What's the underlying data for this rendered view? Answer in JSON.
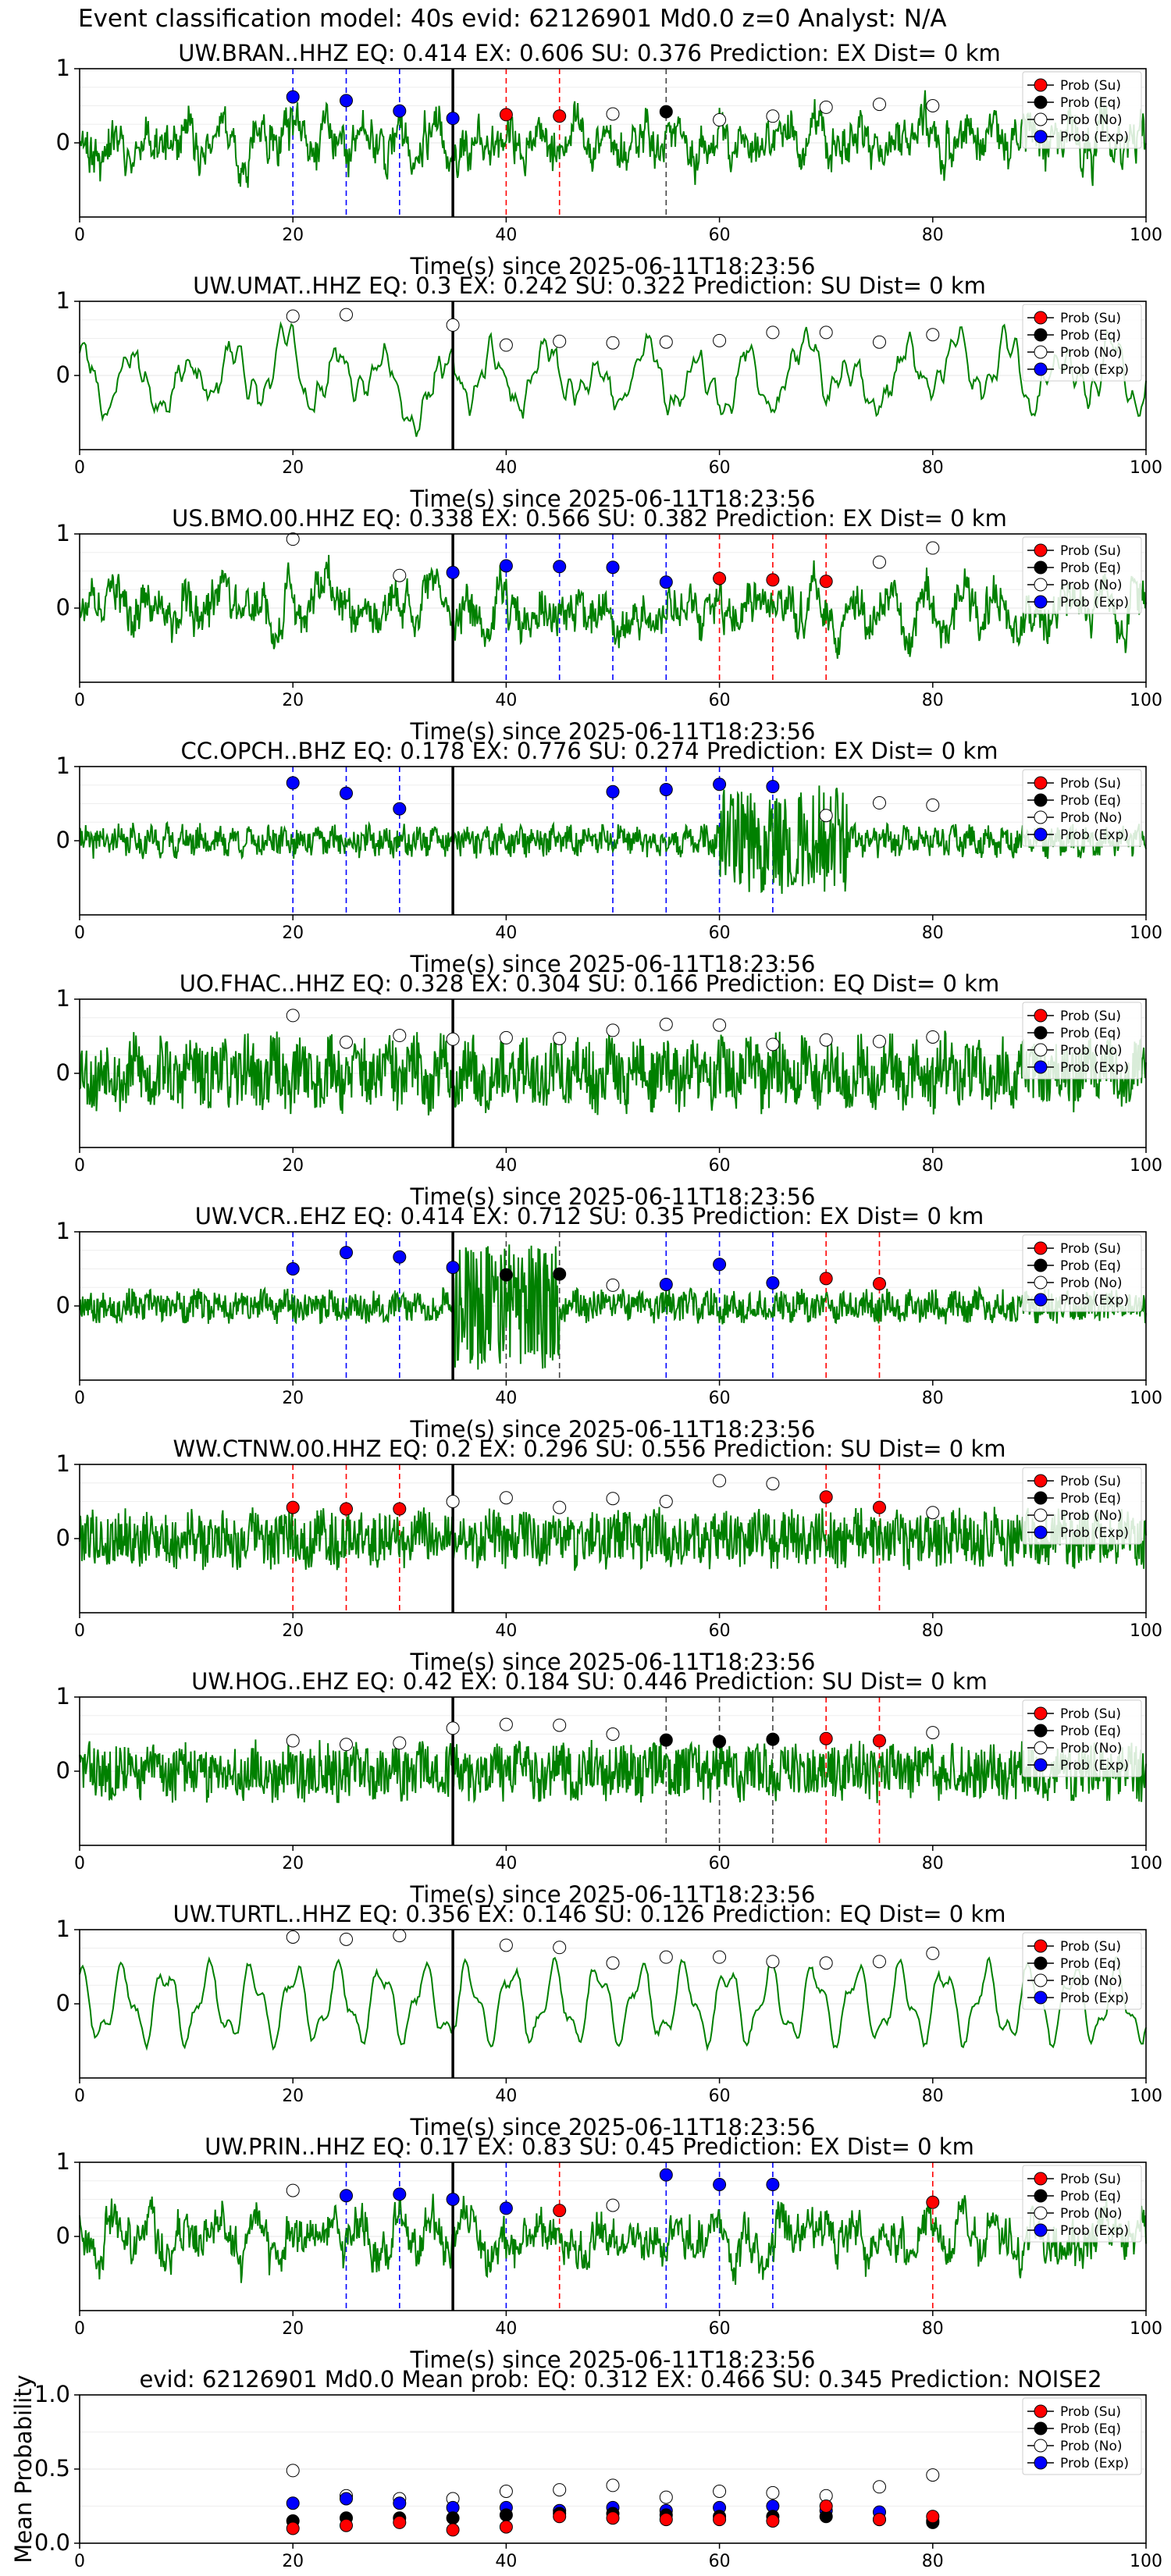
{
  "header": {
    "title": "Event classification model: 40s evid: 62126901 Md0.0 z=0 Analyst: N/A"
  },
  "legend_labels": [
    "Prob (Su)",
    "Prob (Eq)",
    "Prob (No)",
    "Prob (Exp)"
  ],
  "colors": {
    "su": "#ff0000",
    "eq": "#000000",
    "no": "#ffffff",
    "exp": "#0000ff",
    "trace": "#008000",
    "onset": "#000000"
  },
  "chart_data": [
    {
      "type": "line",
      "title": "UW.BRAN..HHZ   EQ: 0.414   EX: 0.606   SU: 0.376   Prediction: EX    Dist= 0 km",
      "xlabel": "Time(s) since 2025-06-11T18:23:56",
      "xlim": [
        0,
        100
      ],
      "ylim": [
        -1,
        1
      ],
      "xticks": [
        0,
        20,
        40,
        60,
        80,
        100
      ],
      "yticks": [
        0,
        1
      ],
      "onset": 35,
      "seed": 11,
      "style": "mixed",
      "points": [
        {
          "x": 20,
          "y": 0.62,
          "cls": "exp"
        },
        {
          "x": 25,
          "y": 0.57,
          "cls": "exp"
        },
        {
          "x": 30,
          "y": 0.43,
          "cls": "exp"
        },
        {
          "x": 35,
          "y": 0.33,
          "cls": "exp"
        },
        {
          "x": 40,
          "y": 0.38,
          "cls": "su"
        },
        {
          "x": 45,
          "y": 0.36,
          "cls": "su"
        },
        {
          "x": 50,
          "y": 0.39,
          "cls": "no"
        },
        {
          "x": 55,
          "y": 0.42,
          "cls": "eq"
        },
        {
          "x": 60,
          "y": 0.31,
          "cls": "no"
        },
        {
          "x": 65,
          "y": 0.36,
          "cls": "no"
        },
        {
          "x": 70,
          "y": 0.48,
          "cls": "no"
        },
        {
          "x": 75,
          "y": 0.52,
          "cls": "no"
        },
        {
          "x": 80,
          "y": 0.5,
          "cls": "no"
        }
      ]
    },
    {
      "type": "line",
      "title": "UW.UMAT..HHZ   EQ: 0.3  EX: 0.242  SU: 0.322   Prediction: SU    Dist= 0 km",
      "xlabel": "Time(s) since 2025-06-11T18:23:56",
      "xlim": [
        0,
        100
      ],
      "ylim": [
        -1,
        1
      ],
      "xticks": [
        0,
        20,
        40,
        60,
        80,
        100
      ],
      "yticks": [
        0,
        1
      ],
      "onset": 35,
      "seed": 23,
      "style": "smooth",
      "points": [
        {
          "x": 20,
          "y": 0.8,
          "cls": "no"
        },
        {
          "x": 25,
          "y": 0.82,
          "cls": "no"
        },
        {
          "x": 35,
          "y": 0.68,
          "cls": "no"
        },
        {
          "x": 40,
          "y": 0.41,
          "cls": "no"
        },
        {
          "x": 45,
          "y": 0.46,
          "cls": "no"
        },
        {
          "x": 50,
          "y": 0.44,
          "cls": "no"
        },
        {
          "x": 55,
          "y": 0.45,
          "cls": "no"
        },
        {
          "x": 60,
          "y": 0.47,
          "cls": "no"
        },
        {
          "x": 65,
          "y": 0.58,
          "cls": "no"
        },
        {
          "x": 70,
          "y": 0.58,
          "cls": "no"
        },
        {
          "x": 75,
          "y": 0.45,
          "cls": "no"
        },
        {
          "x": 80,
          "y": 0.55,
          "cls": "no"
        }
      ]
    },
    {
      "type": "line",
      "title": "US.BMO.00.HHZ   EQ: 0.338   EX: 0.566   SU: 0.382   Prediction: EX    Dist= 0 km",
      "xlabel": "Time(s) since 2025-06-11T18:23:56",
      "xlim": [
        0,
        100
      ],
      "ylim": [
        -1,
        1
      ],
      "xticks": [
        0,
        20,
        40,
        60,
        80,
        100
      ],
      "yticks": [
        0,
        1
      ],
      "onset": 35,
      "seed": 37,
      "style": "mixed",
      "points": [
        {
          "x": 20,
          "y": 0.93,
          "cls": "no"
        },
        {
          "x": 30,
          "y": 0.44,
          "cls": "no"
        },
        {
          "x": 35,
          "y": 0.48,
          "cls": "exp"
        },
        {
          "x": 40,
          "y": 0.57,
          "cls": "exp"
        },
        {
          "x": 45,
          "y": 0.56,
          "cls": "exp"
        },
        {
          "x": 50,
          "y": 0.55,
          "cls": "exp"
        },
        {
          "x": 55,
          "y": 0.35,
          "cls": "exp"
        },
        {
          "x": 60,
          "y": 0.4,
          "cls": "su"
        },
        {
          "x": 65,
          "y": 0.38,
          "cls": "su"
        },
        {
          "x": 70,
          "y": 0.36,
          "cls": "su"
        },
        {
          "x": 75,
          "y": 0.62,
          "cls": "no"
        },
        {
          "x": 80,
          "y": 0.81,
          "cls": "no"
        }
      ]
    },
    {
      "type": "line",
      "title": "CC.OPCH..BHZ   EQ: 0.178   EX: 0.776   SU: 0.274   Prediction: EX    Dist= 0 km",
      "xlabel": "Time(s) since 2025-06-11T18:23:56",
      "xlim": [
        0,
        100
      ],
      "ylim": [
        -1,
        1
      ],
      "xticks": [
        0,
        20,
        40,
        60,
        80,
        100
      ],
      "yticks": [
        0,
        1
      ],
      "onset": 35,
      "seed": 41,
      "style": "quiet",
      "points": [
        {
          "x": 20,
          "y": 0.78,
          "cls": "exp"
        },
        {
          "x": 25,
          "y": 0.64,
          "cls": "exp"
        },
        {
          "x": 30,
          "y": 0.43,
          "cls": "exp"
        },
        {
          "x": 50,
          "y": 0.66,
          "cls": "exp"
        },
        {
          "x": 55,
          "y": 0.69,
          "cls": "exp"
        },
        {
          "x": 60,
          "y": 0.76,
          "cls": "exp"
        },
        {
          "x": 65,
          "y": 0.73,
          "cls": "exp"
        },
        {
          "x": 70,
          "y": 0.34,
          "cls": "no"
        },
        {
          "x": 75,
          "y": 0.51,
          "cls": "no"
        },
        {
          "x": 80,
          "y": 0.48,
          "cls": "no"
        }
      ]
    },
    {
      "type": "line",
      "title": "UO.FHAC..HHZ   EQ: 0.328   EX: 0.304   SU: 0.166   Prediction: EQ    Dist= 0 km",
      "xlabel": "Time(s) since 2025-06-11T18:23:56",
      "xlim": [
        0,
        100
      ],
      "ylim": [
        -1,
        1
      ],
      "xticks": [
        0,
        20,
        40,
        60,
        80,
        100
      ],
      "yticks": [
        0,
        1
      ],
      "onset": 35,
      "seed": 53,
      "style": "busy",
      "points": [
        {
          "x": 20,
          "y": 0.78,
          "cls": "no"
        },
        {
          "x": 25,
          "y": 0.42,
          "cls": "no"
        },
        {
          "x": 30,
          "y": 0.51,
          "cls": "no"
        },
        {
          "x": 35,
          "y": 0.46,
          "cls": "no"
        },
        {
          "x": 40,
          "y": 0.48,
          "cls": "no"
        },
        {
          "x": 45,
          "y": 0.47,
          "cls": "no"
        },
        {
          "x": 50,
          "y": 0.58,
          "cls": "no"
        },
        {
          "x": 55,
          "y": 0.66,
          "cls": "no"
        },
        {
          "x": 60,
          "y": 0.65,
          "cls": "no"
        },
        {
          "x": 65,
          "y": 0.39,
          "cls": "no"
        },
        {
          "x": 70,
          "y": 0.45,
          "cls": "no"
        },
        {
          "x": 75,
          "y": 0.43,
          "cls": "no"
        },
        {
          "x": 80,
          "y": 0.49,
          "cls": "no"
        }
      ]
    },
    {
      "type": "line",
      "title": "UW.VCR..EHZ   EQ: 0.414   EX: 0.712   SU: 0.35   Prediction: EX    Dist= 0 km",
      "xlabel": "Time(s) since 2025-06-11T18:23:56",
      "xlim": [
        0,
        100
      ],
      "ylim": [
        -1,
        1
      ],
      "xticks": [
        0,
        20,
        40,
        60,
        80,
        100
      ],
      "yticks": [
        0,
        1
      ],
      "onset": 35,
      "seed": 67,
      "style": "burst",
      "points": [
        {
          "x": 20,
          "y": 0.5,
          "cls": "exp"
        },
        {
          "x": 25,
          "y": 0.72,
          "cls": "exp"
        },
        {
          "x": 30,
          "y": 0.66,
          "cls": "exp"
        },
        {
          "x": 35,
          "y": 0.52,
          "cls": "exp"
        },
        {
          "x": 40,
          "y": 0.42,
          "cls": "eq"
        },
        {
          "x": 45,
          "y": 0.43,
          "cls": "eq"
        },
        {
          "x": 50,
          "y": 0.28,
          "cls": "no"
        },
        {
          "x": 55,
          "y": 0.29,
          "cls": "exp"
        },
        {
          "x": 60,
          "y": 0.56,
          "cls": "exp"
        },
        {
          "x": 65,
          "y": 0.31,
          "cls": "exp"
        },
        {
          "x": 70,
          "y": 0.37,
          "cls": "su"
        },
        {
          "x": 75,
          "y": 0.3,
          "cls": "su"
        }
      ]
    },
    {
      "type": "line",
      "title": "WW.CTNW.00.HHZ   EQ: 0.2   EX: 0.296   SU: 0.556   Prediction: SU    Dist= 0 km",
      "xlabel": "Time(s) since 2025-06-11T18:23:56",
      "xlim": [
        0,
        100
      ],
      "ylim": [
        -1,
        1
      ],
      "xticks": [
        0,
        20,
        40,
        60,
        80,
        100
      ],
      "yticks": [
        0,
        1
      ],
      "onset": 35,
      "seed": 79,
      "style": "noisy",
      "points": [
        {
          "x": 20,
          "y": 0.42,
          "cls": "su"
        },
        {
          "x": 25,
          "y": 0.4,
          "cls": "su"
        },
        {
          "x": 30,
          "y": 0.4,
          "cls": "su"
        },
        {
          "x": 35,
          "y": 0.5,
          "cls": "no"
        },
        {
          "x": 40,
          "y": 0.55,
          "cls": "no"
        },
        {
          "x": 45,
          "y": 0.42,
          "cls": "no"
        },
        {
          "x": 50,
          "y": 0.54,
          "cls": "no"
        },
        {
          "x": 55,
          "y": 0.5,
          "cls": "no"
        },
        {
          "x": 60,
          "y": 0.78,
          "cls": "no"
        },
        {
          "x": 65,
          "y": 0.74,
          "cls": "no"
        },
        {
          "x": 70,
          "y": 0.56,
          "cls": "su"
        },
        {
          "x": 75,
          "y": 0.42,
          "cls": "su"
        },
        {
          "x": 80,
          "y": 0.35,
          "cls": "no"
        }
      ]
    },
    {
      "type": "line",
      "title": "UW.HOG..EHZ   EQ: 0.42   EX: 0.184   SU: 0.446   Prediction: SU    Dist= 0 km",
      "xlabel": "Time(s) since 2025-06-11T18:23:56",
      "xlim": [
        0,
        100
      ],
      "ylim": [
        -1,
        1
      ],
      "xticks": [
        0,
        20,
        40,
        60,
        80,
        100
      ],
      "yticks": [
        0,
        1
      ],
      "onset": 35,
      "seed": 83,
      "style": "noisy",
      "points": [
        {
          "x": 20,
          "y": 0.41,
          "cls": "no"
        },
        {
          "x": 25,
          "y": 0.36,
          "cls": "no"
        },
        {
          "x": 30,
          "y": 0.38,
          "cls": "no"
        },
        {
          "x": 35,
          "y": 0.58,
          "cls": "no"
        },
        {
          "x": 40,
          "y": 0.63,
          "cls": "no"
        },
        {
          "x": 45,
          "y": 0.62,
          "cls": "no"
        },
        {
          "x": 50,
          "y": 0.5,
          "cls": "no"
        },
        {
          "x": 55,
          "y": 0.42,
          "cls": "eq"
        },
        {
          "x": 60,
          "y": 0.4,
          "cls": "eq"
        },
        {
          "x": 65,
          "y": 0.43,
          "cls": "eq"
        },
        {
          "x": 70,
          "y": 0.44,
          "cls": "su"
        },
        {
          "x": 75,
          "y": 0.41,
          "cls": "su"
        },
        {
          "x": 80,
          "y": 0.52,
          "cls": "no"
        }
      ]
    },
    {
      "type": "line",
      "title": "UW.TURTL..HHZ   EQ: 0.356   EX: 0.146   SU: 0.126   Prediction: EQ    Dist= 0 km",
      "xlabel": "Time(s) since 2025-06-11T18:23:56",
      "xlim": [
        0,
        100
      ],
      "ylim": [
        -1,
        1
      ],
      "xticks": [
        0,
        20,
        40,
        60,
        80,
        100
      ],
      "yticks": [
        0,
        1
      ],
      "onset": 35,
      "seed": 97,
      "style": "wave",
      "points": [
        {
          "x": 20,
          "y": 0.9,
          "cls": "no"
        },
        {
          "x": 25,
          "y": 0.87,
          "cls": "no"
        },
        {
          "x": 30,
          "y": 0.92,
          "cls": "no"
        },
        {
          "x": 40,
          "y": 0.79,
          "cls": "no"
        },
        {
          "x": 45,
          "y": 0.76,
          "cls": "no"
        },
        {
          "x": 50,
          "y": 0.55,
          "cls": "no"
        },
        {
          "x": 55,
          "y": 0.63,
          "cls": "no"
        },
        {
          "x": 60,
          "y": 0.63,
          "cls": "no"
        },
        {
          "x": 65,
          "y": 0.57,
          "cls": "no"
        },
        {
          "x": 70,
          "y": 0.55,
          "cls": "no"
        },
        {
          "x": 75,
          "y": 0.57,
          "cls": "no"
        },
        {
          "x": 80,
          "y": 0.68,
          "cls": "no"
        }
      ]
    },
    {
      "type": "line",
      "title": "UW.PRIN..HHZ   EQ: 0.17   EX: 0.83   SU: 0.45   Prediction: EX    Dist= 0 km",
      "xlabel": "Time(s) since 2025-06-11T18:23:56",
      "xlim": [
        0,
        100
      ],
      "ylim": [
        -1,
        1
      ],
      "xticks": [
        0,
        20,
        40,
        60,
        80,
        100
      ],
      "yticks": [
        0,
        1
      ],
      "onset": 35,
      "seed": 101,
      "style": "mixed",
      "points": [
        {
          "x": 20,
          "y": 0.62,
          "cls": "no"
        },
        {
          "x": 25,
          "y": 0.55,
          "cls": "exp"
        },
        {
          "x": 30,
          "y": 0.57,
          "cls": "exp"
        },
        {
          "x": 35,
          "y": 0.5,
          "cls": "exp"
        },
        {
          "x": 40,
          "y": 0.38,
          "cls": "exp"
        },
        {
          "x": 45,
          "y": 0.35,
          "cls": "su"
        },
        {
          "x": 50,
          "y": 0.42,
          "cls": "no"
        },
        {
          "x": 55,
          "y": 0.83,
          "cls": "exp"
        },
        {
          "x": 60,
          "y": 0.7,
          "cls": "exp"
        },
        {
          "x": 65,
          "y": 0.7,
          "cls": "exp"
        },
        {
          "x": 80,
          "y": 0.46,
          "cls": "su"
        }
      ]
    },
    {
      "type": "scatter",
      "title": "evid: 62126901  Md0.0   Mean prob:   EQ: 0.312   EX: 0.466   SU: 0.345   Prediction: NOISE2",
      "ylabel": "Mean Probability",
      "xlim": [
        0,
        100
      ],
      "ylim": [
        0,
        1
      ],
      "xticks": [
        0,
        20,
        40,
        60,
        80,
        100
      ],
      "yticks": [
        0.0,
        0.5,
        1.0
      ],
      "x": [
        20,
        25,
        30,
        35,
        40,
        45,
        50,
        55,
        60,
        65,
        70,
        75,
        80
      ],
      "series": [
        {
          "cls": "no",
          "values": [
            0.49,
            0.32,
            0.3,
            0.3,
            0.35,
            0.36,
            0.39,
            0.31,
            0.35,
            0.34,
            0.32,
            0.38,
            0.46
          ]
        },
        {
          "cls": "exp",
          "values": [
            0.27,
            0.3,
            0.27,
            0.24,
            0.24,
            0.22,
            0.24,
            0.22,
            0.24,
            0.25,
            0.22,
            0.21,
            0.15
          ]
        },
        {
          "cls": "eq",
          "values": [
            0.15,
            0.17,
            0.17,
            0.17,
            0.19,
            0.2,
            0.2,
            0.19,
            0.18,
            0.18,
            0.18,
            0.16,
            0.14
          ]
        },
        {
          "cls": "su",
          "values": [
            0.1,
            0.12,
            0.14,
            0.09,
            0.11,
            0.18,
            0.17,
            0.16,
            0.16,
            0.15,
            0.25,
            0.16,
            0.18
          ]
        }
      ]
    }
  ]
}
